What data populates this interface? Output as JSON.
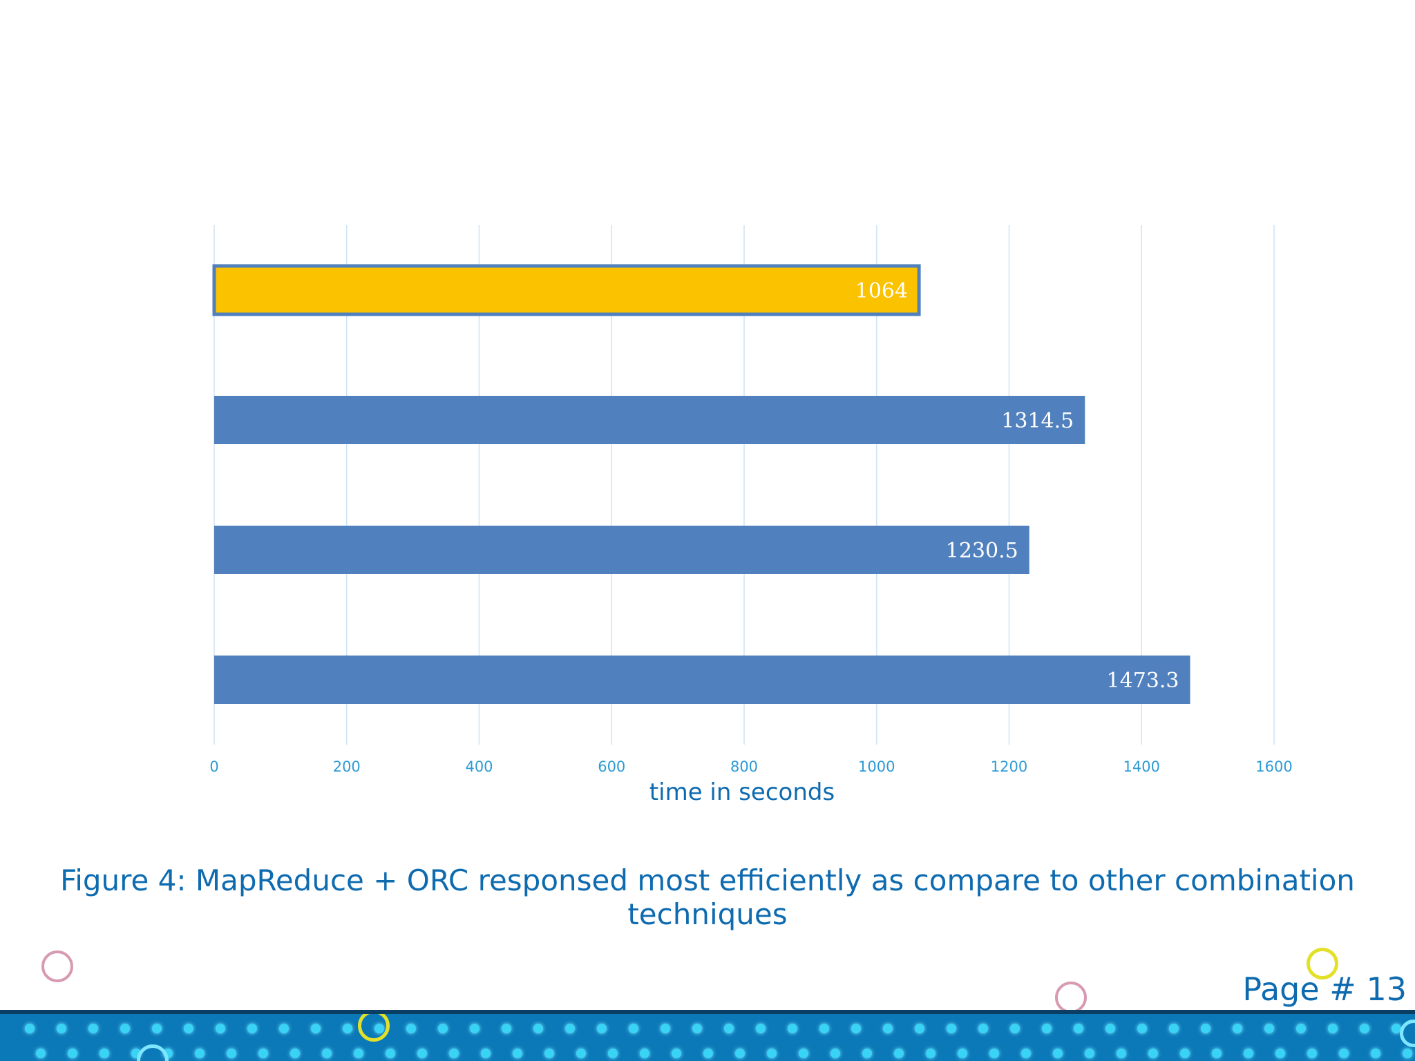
{
  "chart_data": {
    "type": "bar",
    "orientation": "horizontal",
    "categories": [
      "",
      "",
      "",
      ""
    ],
    "values": [
      1064,
      1314.5,
      1230.5,
      1473.3
    ],
    "data_labels": [
      "1064",
      "1314.5",
      "1230.5",
      "1473.3"
    ],
    "highlight_index": 0,
    "colors": {
      "bar": "#5080BD",
      "highlight_fill": "#FBC200",
      "highlight_border": "#5080BD",
      "grid": "#CDE4F6",
      "tick_label": "#2E9BD6",
      "axis_title": "#0E6BB0"
    },
    "xlabel": "time in seconds",
    "xlim": [
      0,
      1600
    ],
    "xticks": [
      0,
      200,
      400,
      600,
      800,
      1000,
      1200,
      1400,
      1600
    ],
    "xtick_labels": [
      "0",
      "200",
      "400",
      "600",
      "800",
      "1000",
      "1200",
      "1400",
      "1600"
    ],
    "grid": "vertical"
  },
  "caption": "Figure 4: MapReduce + ORC responsed most efficiently as compare to other combination techniques",
  "page_number": "Page # 13"
}
